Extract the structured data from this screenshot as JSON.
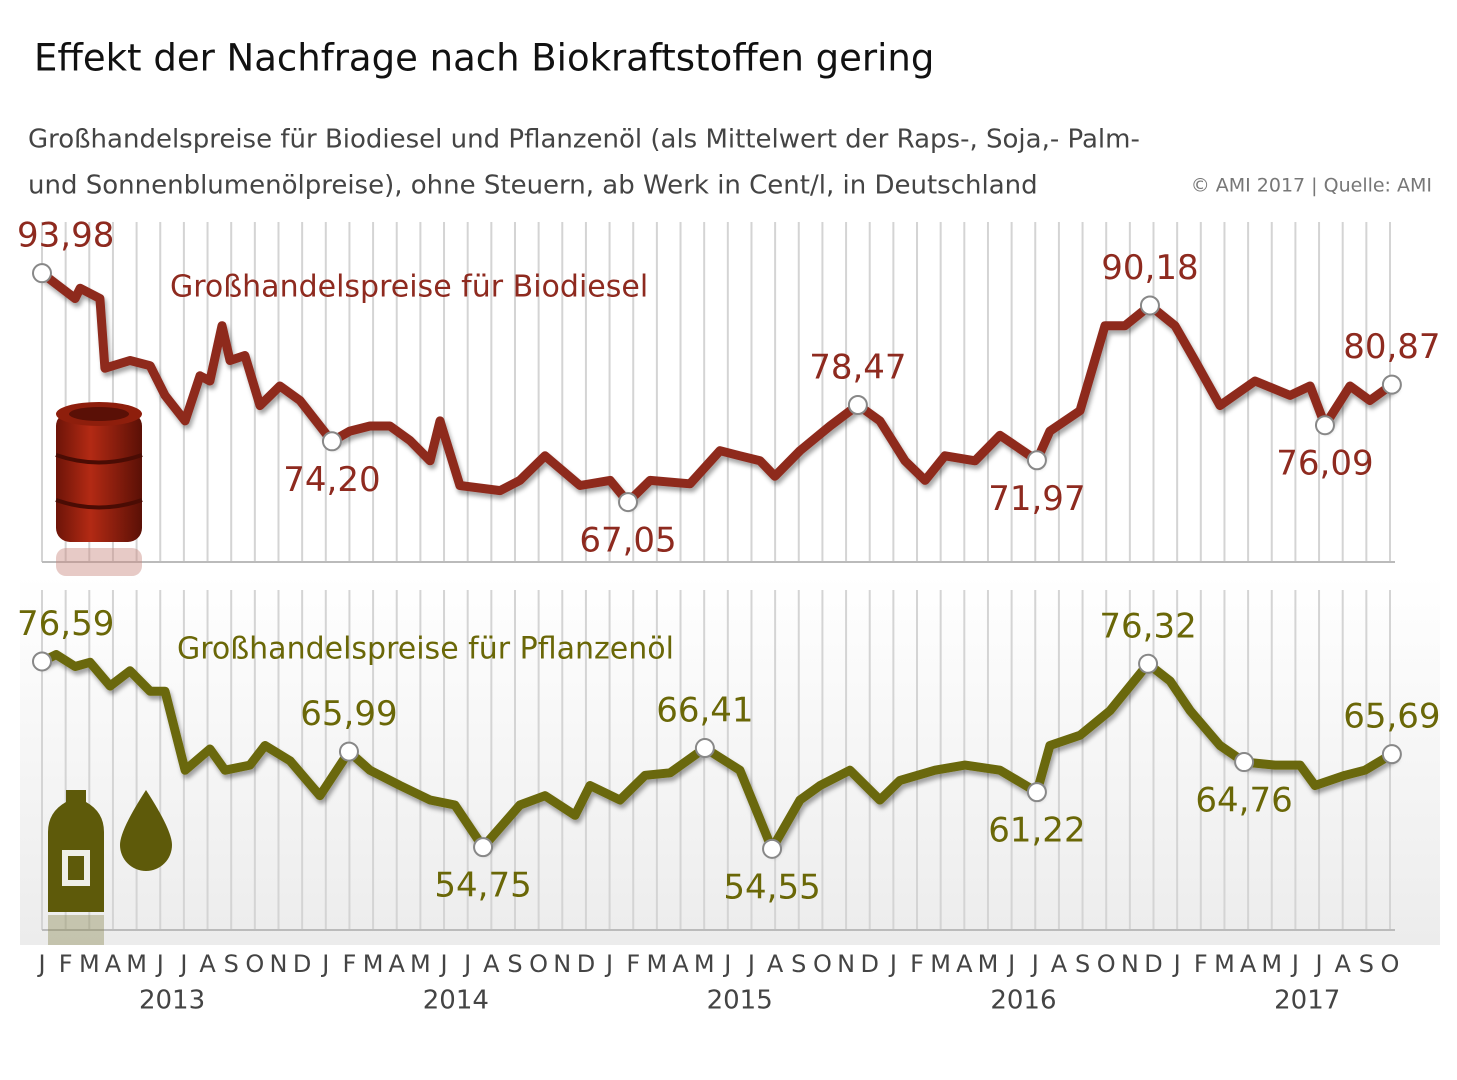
{
  "title": "Effekt der Nachfrage nach Biokraftstoffen gering",
  "subtitle": [
    "Großhandelspreise für Biodiesel und Pflanzenöl (als Mittelwert der Raps-, Soja,- Palm-",
    "und Sonnenblumenölpreise), ohne Steuern, ab Werk in Cent/l, in Deutschland"
  ],
  "source": "© AMI 2017 | Quelle: AMI",
  "chart_data": [
    {
      "type": "line",
      "xlim": [
        0,
        57
      ],
      "ylim": [
        60,
        100
      ],
      "grid": true,
      "series": [
        {
          "name": "Großhandelspreise für Biodiesel",
          "color": "#8e2a1f",
          "x": [
            0,
            1.4,
            1.61,
            2.45,
            2.66,
            3.72,
            4.57,
            5.2,
            6.05,
            6.68,
            7.1,
            7.61,
            7.95,
            8.58,
            9.22,
            10.06,
            10.91,
            12.26,
            13.02,
            13.87,
            14.71,
            15.56,
            16.41,
            16.83,
            17.67,
            19.37,
            20.21,
            21.27,
            22.75,
            24.02,
            24.78,
            25.71,
            27.4,
            28.67,
            29.51,
            30.36,
            30.99,
            32.05,
            33.32,
            34.5,
            35.43,
            36.49,
            37.34,
            38.18,
            39.45,
            40.51,
            42.07,
            42.62,
            43.89,
            44.95,
            45.79,
            46.85,
            47.91,
            48.75,
            49.81,
            51.29,
            52.77,
            53.62,
            54.25,
            55.31,
            56.15,
            57.08
          ],
          "values": [
            93.98,
            91.0,
            92.2,
            91.0,
            82.8,
            83.7,
            83.1,
            79.6,
            76.6,
            81.9,
            81.3,
            87.8,
            83.7,
            84.3,
            78.4,
            80.7,
            79.0,
            74.2,
            75.4,
            76.0,
            76.0,
            74.3,
            71.9,
            76.6,
            69.0,
            68.4,
            69.6,
            72.5,
            69.0,
            69.6,
            67.05,
            69.6,
            69.2,
            73.1,
            72.5,
            71.9,
            70.1,
            73.1,
            76.0,
            78.47,
            76.6,
            71.9,
            69.6,
            72.5,
            71.9,
            74.9,
            71.97,
            75.4,
            77.8,
            87.8,
            87.8,
            90.18,
            87.8,
            83.7,
            78.4,
            81.3,
            79.6,
            80.7,
            76.09,
            80.7,
            79.0,
            80.87
          ],
          "value_labels": [
            "93,98",
            null,
            null,
            null,
            null,
            null,
            null,
            null,
            null,
            null,
            null,
            null,
            null,
            null,
            null,
            null,
            null,
            "74,20",
            null,
            null,
            null,
            null,
            null,
            null,
            null,
            null,
            null,
            null,
            null,
            null,
            "67,05",
            null,
            null,
            null,
            null,
            null,
            null,
            null,
            null,
            "78,47",
            null,
            null,
            null,
            null,
            null,
            null,
            "71,97",
            null,
            null,
            null,
            null,
            "90,18",
            null,
            null,
            null,
            null,
            null,
            null,
            "76,09",
            null,
            null,
            "80,87"
          ]
        }
      ]
    },
    {
      "type": "line",
      "xlim": [
        0,
        57
      ],
      "ylim": [
        45,
        85
      ],
      "grid": true,
      "series": [
        {
          "name": "Großhandelspreise für Pflanzenöl",
          "color": "#6a6707",
          "x": [
            0,
            0.6,
            1.4,
            2.03,
            2.88,
            3.72,
            4.57,
            5.2,
            6.05,
            7.1,
            7.74,
            8.79,
            9.43,
            10.49,
            11.75,
            12.98,
            13.87,
            15.14,
            16.41,
            17.46,
            18.65,
            20.21,
            21.27,
            22.54,
            23.17,
            24.44,
            25.5,
            26.56,
            28.03,
            29.51,
            30.87,
            32.05,
            32.9,
            34.16,
            35.43,
            36.28,
            37.76,
            39.03,
            40.51,
            42.07,
            42.62,
            43.89,
            45.16,
            46.77,
            47.7,
            48.55,
            49.81,
            50.83,
            52.14,
            53.2,
            53.83,
            55.1,
            55.94,
            57.08
          ],
          "values": [
            76.59,
            77.4,
            76.0,
            76.5,
            73.7,
            75.5,
            73.1,
            73.1,
            63.8,
            66.3,
            63.8,
            64.4,
            66.7,
            64.9,
            60.8,
            65.99,
            63.8,
            62.0,
            60.3,
            59.7,
            54.75,
            59.7,
            60.8,
            58.5,
            62.0,
            60.3,
            63.2,
            63.5,
            66.41,
            63.8,
            54.55,
            60.3,
            62.0,
            63.8,
            60.3,
            62.6,
            63.8,
            64.4,
            63.8,
            61.22,
            66.7,
            67.9,
            70.8,
            76.32,
            74.3,
            70.8,
            66.7,
            64.76,
            64.4,
            64.4,
            62.0,
            63.2,
            63.8,
            65.69
          ],
          "value_labels": [
            "76,59",
            null,
            null,
            null,
            null,
            null,
            null,
            null,
            null,
            null,
            null,
            null,
            null,
            null,
            null,
            "65,99",
            null,
            null,
            null,
            null,
            "54,75",
            null,
            null,
            null,
            null,
            null,
            null,
            null,
            "66,41",
            null,
            "54,55",
            null,
            null,
            null,
            null,
            null,
            null,
            null,
            null,
            "61,22",
            null,
            null,
            null,
            "76,32",
            null,
            null,
            null,
            "64,76",
            null,
            null,
            null,
            null,
            null,
            "65,69"
          ]
        }
      ],
      "xticks": [
        {
          "value": 0,
          "label": "J"
        },
        {
          "value": 1,
          "label": "F"
        },
        {
          "value": 2,
          "label": "M"
        },
        {
          "value": 3,
          "label": "A"
        },
        {
          "value": 4,
          "label": "M"
        },
        {
          "value": 5,
          "label": "J"
        },
        {
          "value": 6,
          "label": "J"
        },
        {
          "value": 7,
          "label": "A"
        },
        {
          "value": 8,
          "label": "S"
        },
        {
          "value": 9,
          "label": "O"
        },
        {
          "value": 10,
          "label": "N"
        },
        {
          "value": 11,
          "label": "D"
        },
        {
          "value": 12,
          "label": "J"
        },
        {
          "value": 13,
          "label": "F"
        },
        {
          "value": 14,
          "label": "M"
        },
        {
          "value": 15,
          "label": "A"
        },
        {
          "value": 16,
          "label": "M"
        },
        {
          "value": 17,
          "label": "J"
        },
        {
          "value": 18,
          "label": "J"
        },
        {
          "value": 19,
          "label": "A"
        },
        {
          "value": 20,
          "label": "S"
        },
        {
          "value": 21,
          "label": "O"
        },
        {
          "value": 22,
          "label": "N"
        },
        {
          "value": 23,
          "label": "D"
        },
        {
          "value": 24,
          "label": "J"
        },
        {
          "value": 25,
          "label": "F"
        },
        {
          "value": 26,
          "label": "M"
        },
        {
          "value": 27,
          "label": "A"
        },
        {
          "value": 28,
          "label": "M"
        },
        {
          "value": 29,
          "label": "J"
        },
        {
          "value": 30,
          "label": "J"
        },
        {
          "value": 31,
          "label": "A"
        },
        {
          "value": 32,
          "label": "S"
        },
        {
          "value": 33,
          "label": "O"
        },
        {
          "value": 34,
          "label": "N"
        },
        {
          "value": 35,
          "label": "D"
        },
        {
          "value": 36,
          "label": "J"
        },
        {
          "value": 37,
          "label": "F"
        },
        {
          "value": 38,
          "label": "M"
        },
        {
          "value": 39,
          "label": "A"
        },
        {
          "value": 40,
          "label": "M"
        },
        {
          "value": 41,
          "label": "J"
        },
        {
          "value": 42,
          "label": "J"
        },
        {
          "value": 43,
          "label": "A"
        },
        {
          "value": 44,
          "label": "S"
        },
        {
          "value": 45,
          "label": "O"
        },
        {
          "value": 46,
          "label": "N"
        },
        {
          "value": 47,
          "label": "D"
        },
        {
          "value": 48,
          "label": "J"
        },
        {
          "value": 49,
          "label": "F"
        },
        {
          "value": 50,
          "label": "M"
        },
        {
          "value": 51,
          "label": "A"
        },
        {
          "value": 52,
          "label": "M"
        },
        {
          "value": 53,
          "label": "J"
        },
        {
          "value": 54,
          "label": "J"
        },
        {
          "value": 55,
          "label": "A"
        },
        {
          "value": 56,
          "label": "S"
        },
        {
          "value": 57,
          "label": "O"
        }
      ],
      "year_ticks": [
        {
          "value": 5.5,
          "label": "2013"
        },
        {
          "value": 17.5,
          "label": "2014"
        },
        {
          "value": 29.5,
          "label": "2015"
        },
        {
          "value": 41.5,
          "label": "2016"
        },
        {
          "value": 53.5,
          "label": "2017"
        }
      ]
    }
  ]
}
